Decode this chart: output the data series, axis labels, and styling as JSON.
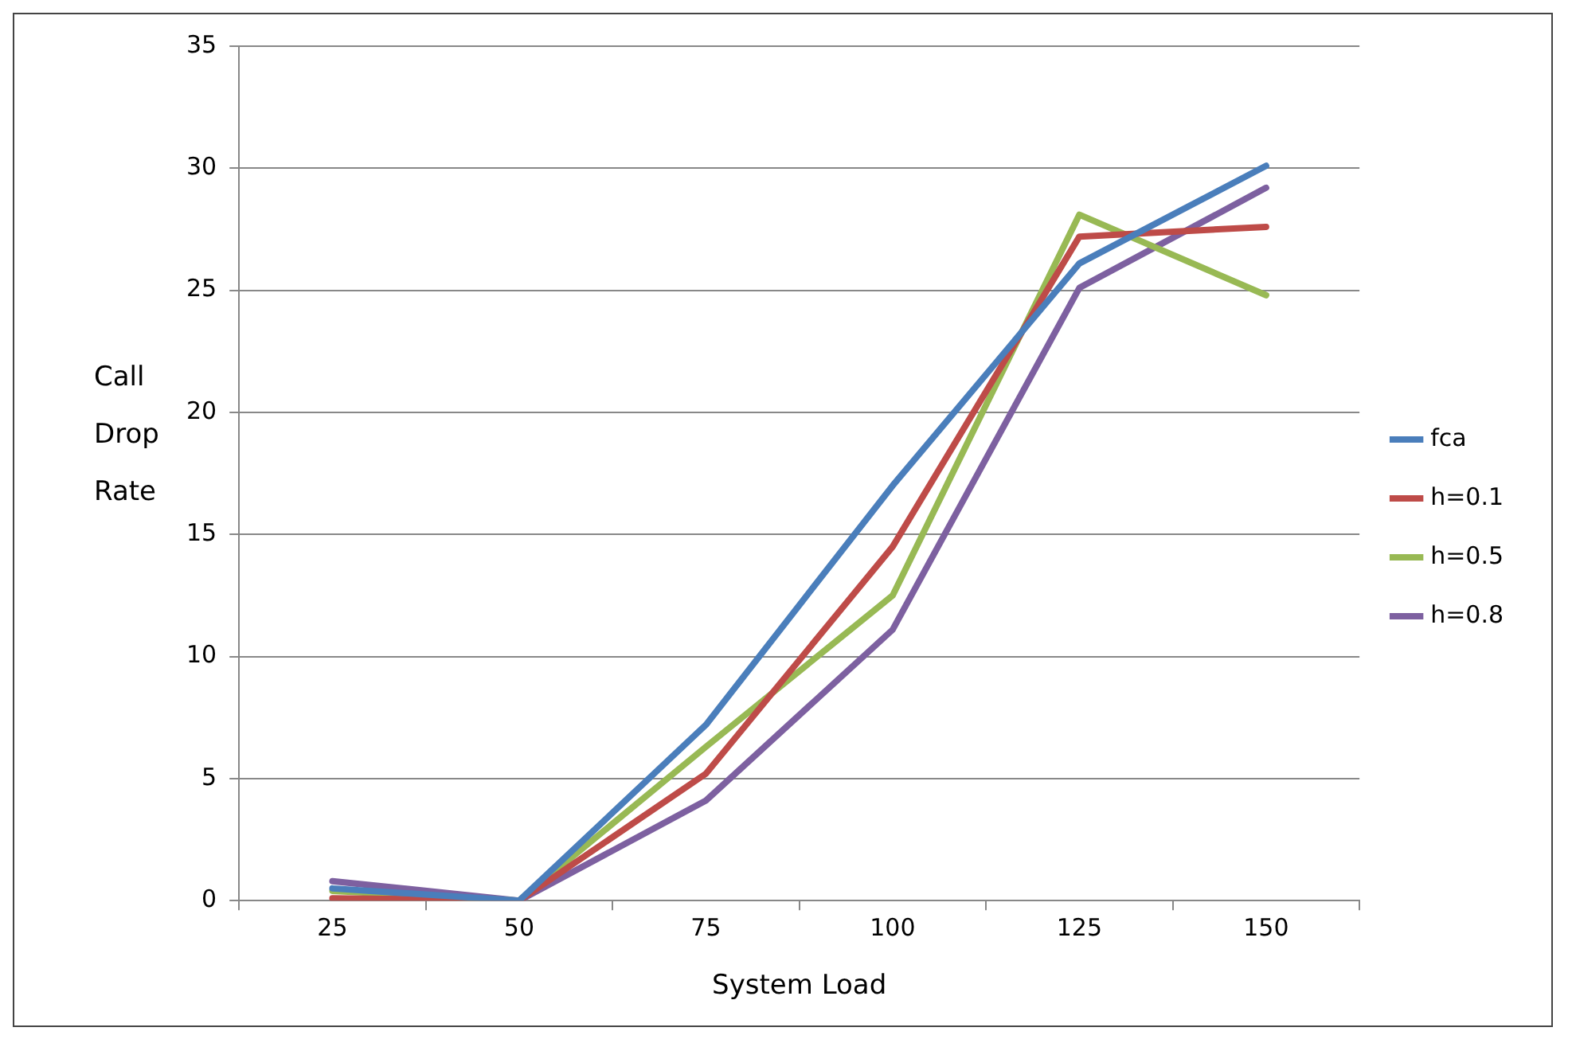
{
  "chart_data": {
    "type": "line",
    "xlabel": "System Load",
    "ylabel": "Call Drop Rate",
    "categories": [
      "25",
      "50",
      "75",
      "100",
      "125",
      "150"
    ],
    "series": [
      {
        "name": "fca",
        "color": "#4a7ebb",
        "values": [
          0.5,
          0,
          7.2,
          17,
          26.1,
          30.1
        ]
      },
      {
        "name": "h=0.1",
        "color": "#be4b48",
        "values": [
          0.1,
          0,
          5.2,
          14.5,
          27.2,
          27.6
        ]
      },
      {
        "name": "h=0.5",
        "color": "#98b954",
        "values": [
          0.4,
          0,
          6.3,
          12.5,
          28.1,
          24.8
        ]
      },
      {
        "name": "h=0.8",
        "color": "#7d60a0",
        "values": [
          0.8,
          0,
          4.1,
          11.1,
          25.1,
          29.2
        ]
      }
    ],
    "ylim": [
      0,
      35
    ],
    "yticks": [
      0,
      5,
      10,
      15,
      20,
      25,
      30,
      35
    ],
    "grid": "y",
    "legend": "right",
    "marker": "none",
    "line_style": "solid"
  }
}
